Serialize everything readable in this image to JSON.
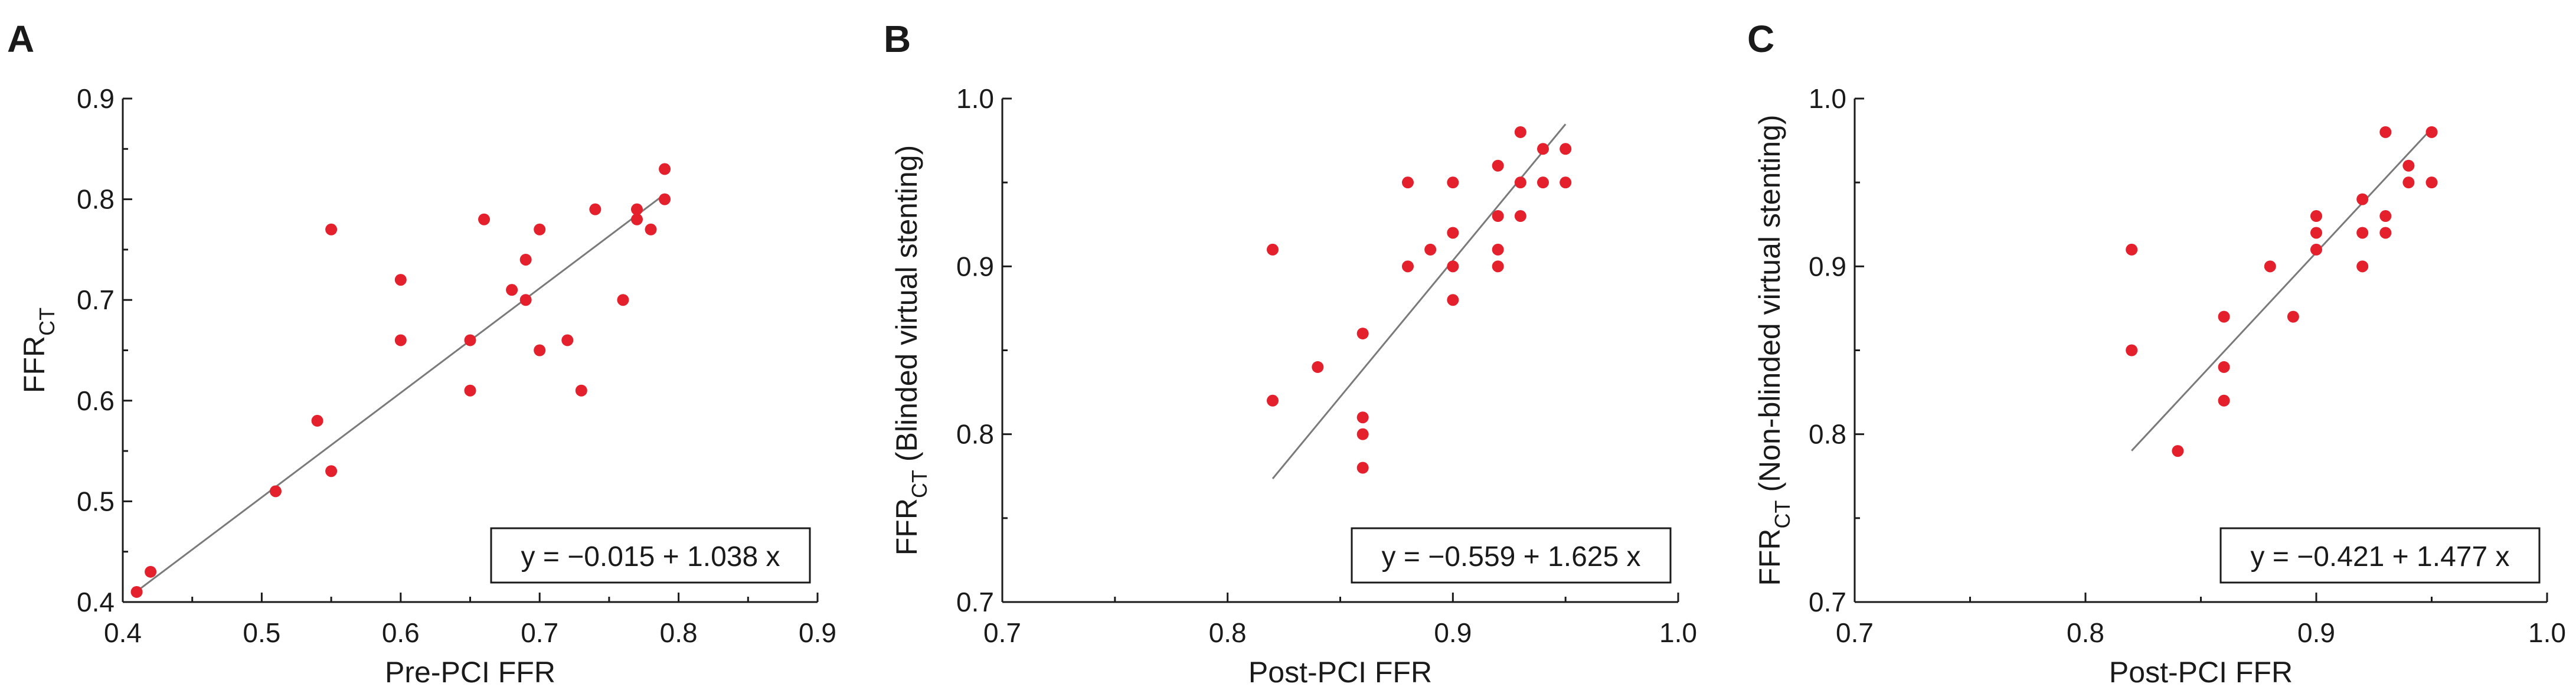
{
  "colors": {
    "point": "#e3202c",
    "fit": "#7a7a7a",
    "axis": "#1a1a1a"
  },
  "chart_data": [
    {
      "type": "scatter",
      "panel_label": "A",
      "xlabel": "Pre-PCI FFR",
      "ylabel": {
        "base": "FFR",
        "sub": "CT",
        "suffix": ""
      },
      "xlim": [
        0.4,
        0.9
      ],
      "ylim": [
        0.4,
        0.9
      ],
      "xticks": [
        "0.4",
        "0.5",
        "0.6",
        "0.7",
        "0.8",
        "0.9"
      ],
      "yticks": [
        "0.4",
        "0.5",
        "0.6",
        "0.7",
        "0.8",
        "0.9"
      ],
      "equation": "y = −0.015 + 1.038 x",
      "fit": {
        "intercept": -0.015,
        "slope": 1.038,
        "x_range": [
          0.41,
          0.79
        ]
      },
      "points": [
        [
          0.41,
          0.41
        ],
        [
          0.42,
          0.43
        ],
        [
          0.51,
          0.51
        ],
        [
          0.54,
          0.58
        ],
        [
          0.55,
          0.53
        ],
        [
          0.55,
          0.77
        ],
        [
          0.6,
          0.72
        ],
        [
          0.6,
          0.66
        ],
        [
          0.65,
          0.66
        ],
        [
          0.65,
          0.61
        ],
        [
          0.66,
          0.78
        ],
        [
          0.68,
          0.71
        ],
        [
          0.69,
          0.74
        ],
        [
          0.69,
          0.7
        ],
        [
          0.7,
          0.77
        ],
        [
          0.7,
          0.65
        ],
        [
          0.72,
          0.66
        ],
        [
          0.73,
          0.61
        ],
        [
          0.74,
          0.79
        ],
        [
          0.76,
          0.7
        ],
        [
          0.77,
          0.79
        ],
        [
          0.77,
          0.78
        ],
        [
          0.78,
          0.77
        ],
        [
          0.79,
          0.8
        ],
        [
          0.79,
          0.83
        ]
      ]
    },
    {
      "type": "scatter",
      "panel_label": "B",
      "xlabel": "Post-PCI FFR",
      "ylabel": {
        "base": "FFR",
        "sub": "CT",
        "suffix": " (Blinded virtual stenting)"
      },
      "xlim": [
        0.7,
        1.0
      ],
      "ylim": [
        0.7,
        1.0
      ],
      "xticks": [
        "0.7",
        "0.8",
        "0.9",
        "1.0"
      ],
      "yticks": [
        "0.7",
        "0.8",
        "0.9",
        "1.0"
      ],
      "equation": "y = −0.559 + 1.625 x",
      "fit": {
        "intercept": -0.559,
        "slope": 1.625,
        "x_range": [
          0.82,
          0.95
        ]
      },
      "points": [
        [
          0.82,
          0.91
        ],
        [
          0.82,
          0.82
        ],
        [
          0.84,
          0.84
        ],
        [
          0.86,
          0.86
        ],
        [
          0.86,
          0.81
        ],
        [
          0.86,
          0.8
        ],
        [
          0.86,
          0.78
        ],
        [
          0.88,
          0.95
        ],
        [
          0.88,
          0.9
        ],
        [
          0.89,
          0.91
        ],
        [
          0.9,
          0.95
        ],
        [
          0.9,
          0.92
        ],
        [
          0.9,
          0.9
        ],
        [
          0.9,
          0.88
        ],
        [
          0.92,
          0.96
        ],
        [
          0.92,
          0.93
        ],
        [
          0.92,
          0.91
        ],
        [
          0.92,
          0.9
        ],
        [
          0.93,
          0.98
        ],
        [
          0.93,
          0.95
        ],
        [
          0.93,
          0.93
        ],
        [
          0.94,
          0.97
        ],
        [
          0.94,
          0.95
        ],
        [
          0.95,
          0.97
        ],
        [
          0.95,
          0.95
        ]
      ]
    },
    {
      "type": "scatter",
      "panel_label": "C",
      "xlabel": "Post-PCI FFR",
      "ylabel": {
        "base": "FFR",
        "sub": "CT",
        "suffix": " (Non-blinded virtual stenting)"
      },
      "xlim": [
        0.7,
        1.0
      ],
      "ylim": [
        0.7,
        1.0
      ],
      "xticks": [
        "0.7",
        "0.8",
        "0.9",
        "1.0"
      ],
      "yticks": [
        "0.7",
        "0.8",
        "0.9",
        "1.0"
      ],
      "equation": "y = −0.421 + 1.477 x",
      "fit": {
        "intercept": -0.421,
        "slope": 1.477,
        "x_range": [
          0.82,
          0.95
        ]
      },
      "points": [
        [
          0.82,
          0.91
        ],
        [
          0.82,
          0.85
        ],
        [
          0.84,
          0.79
        ],
        [
          0.86,
          0.87
        ],
        [
          0.86,
          0.84
        ],
        [
          0.86,
          0.82
        ],
        [
          0.88,
          0.9
        ],
        [
          0.89,
          0.87
        ],
        [
          0.9,
          0.93
        ],
        [
          0.9,
          0.92
        ],
        [
          0.9,
          0.91
        ],
        [
          0.92,
          0.94
        ],
        [
          0.92,
          0.92
        ],
        [
          0.92,
          0.9
        ],
        [
          0.93,
          0.98
        ],
        [
          0.93,
          0.93
        ],
        [
          0.93,
          0.92
        ],
        [
          0.94,
          0.96
        ],
        [
          0.94,
          0.95
        ],
        [
          0.95,
          0.98
        ],
        [
          0.95,
          0.95
        ]
      ]
    }
  ]
}
